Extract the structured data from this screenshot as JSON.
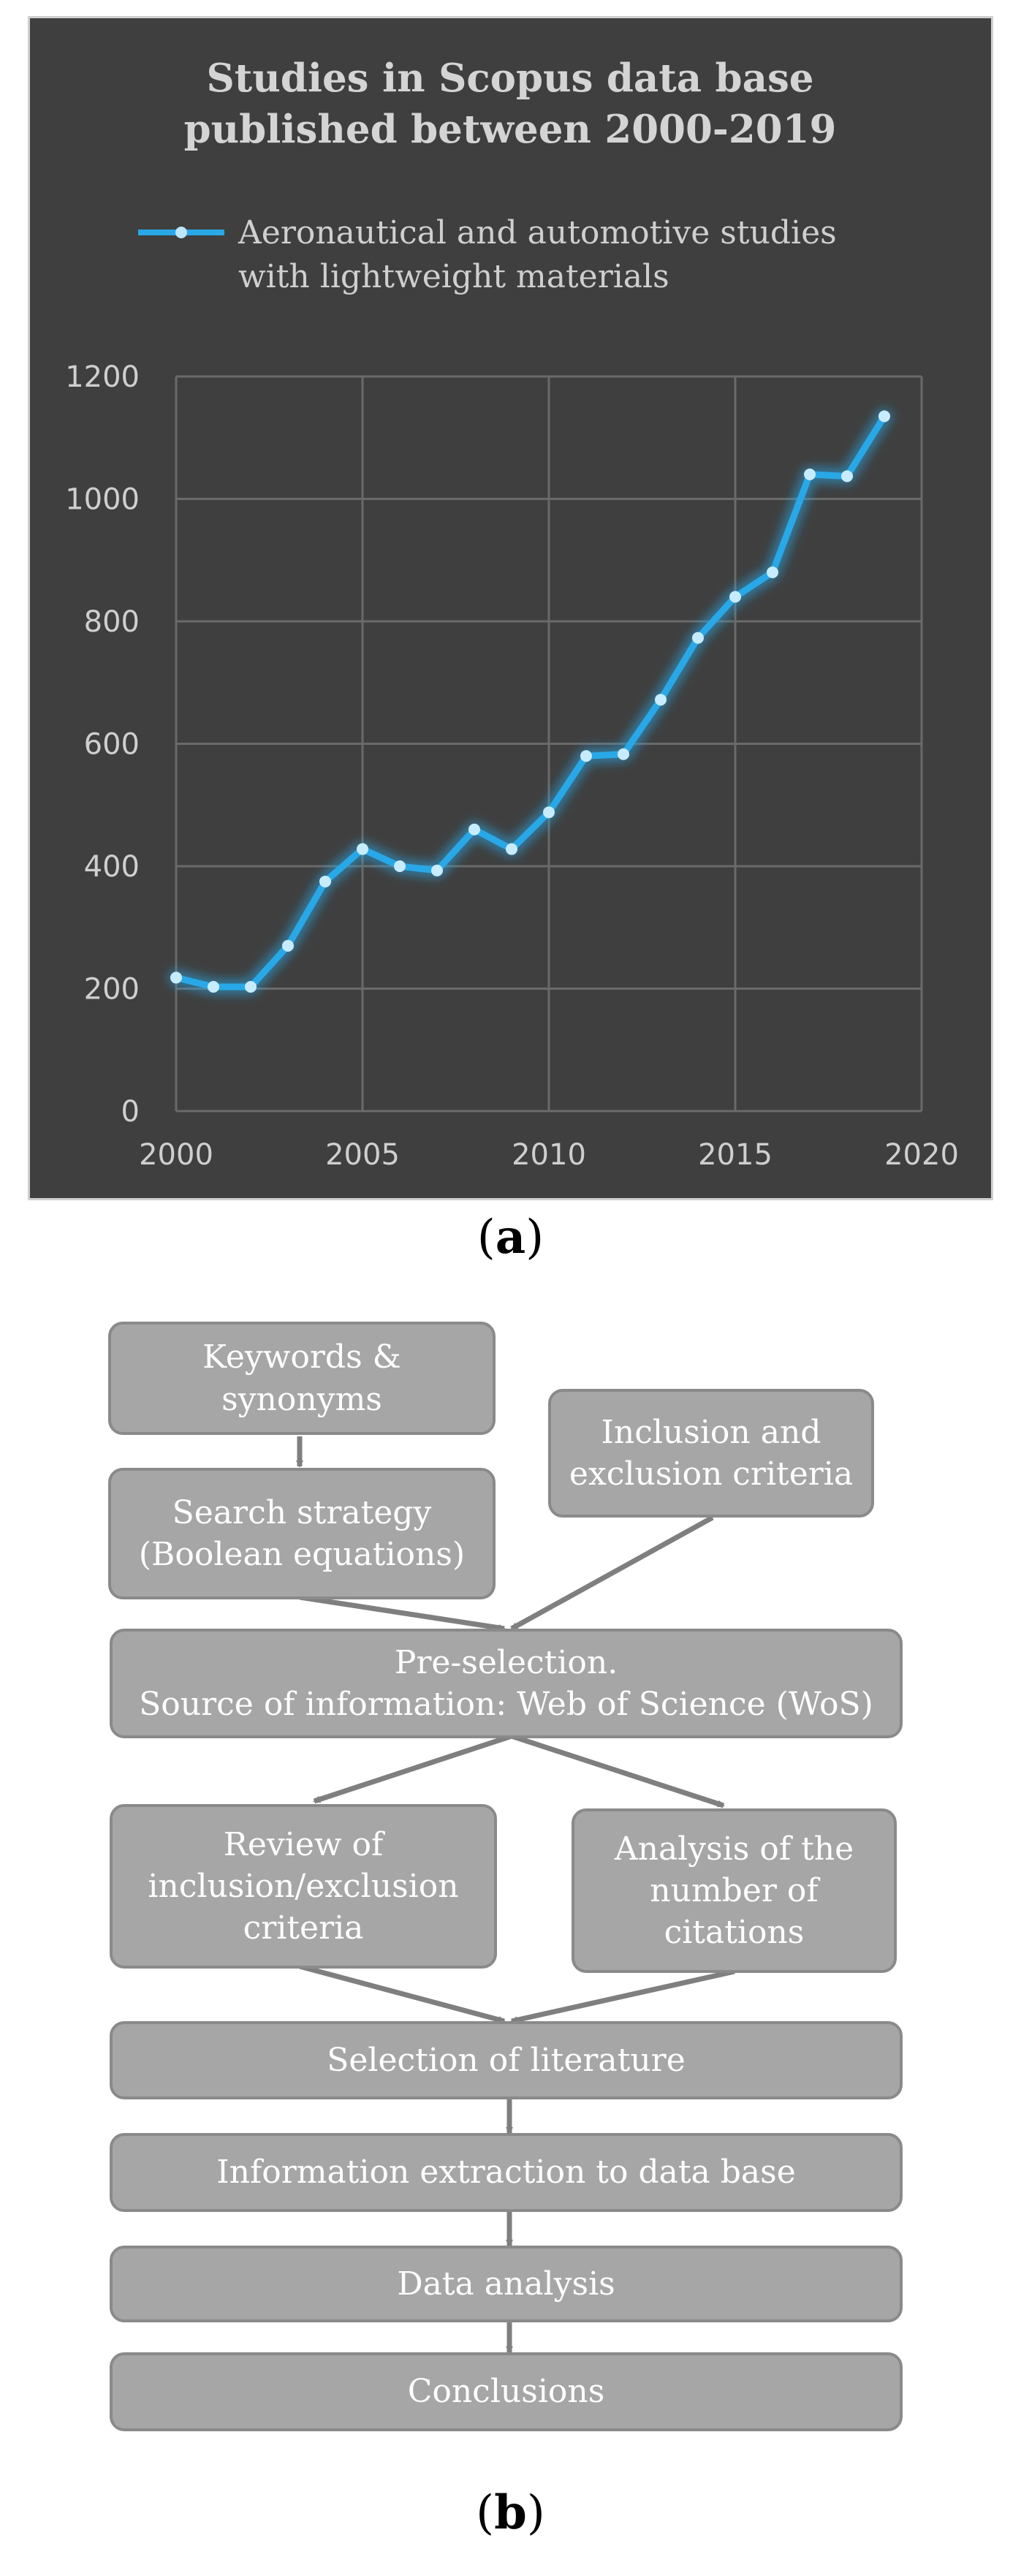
{
  "chart_data": {
    "type": "line",
    "title": [
      "Studies in Scopus data base",
      "published between 2000-2019"
    ],
    "legend": {
      "label": [
        "Aeronautical and automotive studies",
        "with lightweight materials"
      ],
      "position": "top"
    },
    "x": [
      2000,
      2001,
      2002,
      2003,
      2004,
      2005,
      2006,
      2007,
      2008,
      2009,
      2010,
      2011,
      2012,
      2013,
      2014,
      2015,
      2016,
      2017,
      2018,
      2019
    ],
    "series": [
      {
        "name": "Aeronautical and automotive studies with lightweight materials",
        "values": [
          218,
          203,
          203,
          270,
          375,
          428,
          400,
          393,
          460,
          428,
          488,
          580,
          583,
          672,
          773,
          840,
          880,
          1040,
          1037,
          1135
        ],
        "color": "#29a8e8"
      }
    ],
    "xlim": [
      2000,
      2020
    ],
    "ylim": [
      0,
      1200
    ],
    "xticks": [
      2000,
      2005,
      2010,
      2015,
      2020
    ],
    "yticks": [
      0,
      200,
      400,
      600,
      800,
      1000,
      1200
    ],
    "grid": true,
    "background": "#3f3f3f"
  },
  "captions": {
    "a": "a",
    "b": "b"
  },
  "flowchart": {
    "box_color": "#a6a6a6",
    "arrow_color": "#7f7f7f",
    "nodes": {
      "keywords": "Keywords &\nsynonyms",
      "inclusion": "Inclusion and\nexclusion criteria",
      "search": "Search strategy\n(Boolean equations)",
      "preselection": "Pre-selection.\nSource of information: Web of Science (WoS)",
      "review": "Review of\ninclusion/exclusion\ncriteria",
      "citations": "Analysis of the\nnumber of\ncitations",
      "selection": "Selection of literature",
      "extraction": "Information extraction to data base",
      "analysis": "Data analysis",
      "conclusions": "Conclusions"
    }
  }
}
